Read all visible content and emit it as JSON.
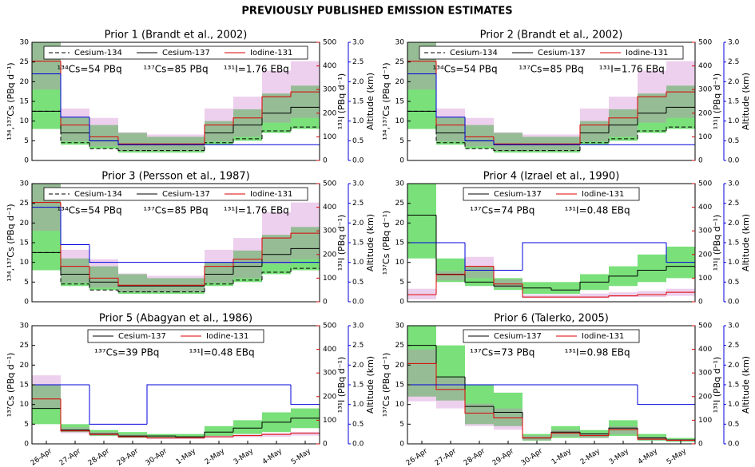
{
  "title": "PREVIOUSLY PUBLISHED EMISSION ESTIMATES",
  "chart_data": [
    {
      "type": "step",
      "title": "Prior 1 (Brandt et al., 2002)",
      "ylabel": "¹³⁴,¹³⁷Cs (PBq d⁻¹)",
      "y2label": "¹³¹I (PBq d⁻¹)",
      "y3label": "Altitude (km)",
      "ylim": [
        0,
        30
      ],
      "yticks": [
        0,
        5,
        10,
        15,
        20,
        25,
        30
      ],
      "y2lim": [
        0,
        500
      ],
      "y2ticks": [
        0,
        100,
        200,
        300,
        400,
        500
      ],
      "y3lim": [
        0,
        3
      ],
      "y3ticks": [
        {
          "value": 0,
          "label": "0.0"
        },
        {
          "value": 0.5,
          "label": "0.5"
        },
        {
          "value": 1,
          "label": "1.0"
        },
        {
          "value": 1.5,
          "label": "1.5"
        },
        {
          "value": 2,
          "label": "2.0"
        },
        {
          "value": 2.5,
          "label": "2.5"
        },
        {
          "value": 3,
          "label": "3.0"
        }
      ],
      "annotations": [
        "¹³⁴Cs=54 PBq",
        "¹³⁷Cs=85 PBq",
        "¹³¹I=1.76 EBq"
      ],
      "series": [
        {
          "name": "Cesium-134",
          "color": "#000000",
          "dash": true,
          "values": [
            12.5,
            4.5,
            3,
            2.5,
            2.5,
            2.5,
            4.5,
            5.5,
            7.5,
            8.5
          ]
        },
        {
          "name": "Cesium-137",
          "color": "#000000",
          "band_color": "#22cc22",
          "values": [
            12.5,
            7,
            5,
            4,
            4,
            4,
            7,
            9,
            12,
            13.5
          ],
          "lower": [
            8,
            4,
            3,
            2,
            2,
            2,
            4,
            5,
            7,
            8
          ],
          "upper": [
            30,
            11,
            9,
            7,
            6,
            6,
            10,
            13,
            17,
            19
          ]
        },
        {
          "name": "Iodine-131",
          "color": "#dd0000",
          "axis": "y2",
          "band_color": "#cc77cc",
          "values": [
            420,
            150,
            100,
            70,
            70,
            70,
            150,
            180,
            270,
            290
          ],
          "lower": [
            300,
            80,
            60,
            40,
            40,
            40,
            80,
            100,
            160,
            180
          ],
          "upper": [
            500,
            220,
            180,
            120,
            110,
            110,
            220,
            270,
            380,
            420
          ]
        }
      ],
      "altitude": {
        "color": "#0000dd",
        "values": [
          2.2,
          1.1,
          0.5,
          0.4,
          0.4,
          0.4,
          0.4,
          0.4,
          0.4,
          0.4
        ]
      }
    },
    {
      "type": "step",
      "title": "Prior 2 (Brandt et al., 2002)",
      "ylabel": "¹³⁴,¹³⁷Cs (PBq d⁻¹)",
      "y2label": "¹³¹I (PBq d⁻¹)",
      "y3label": "Altitude (km)",
      "ylim": [
        0,
        30
      ],
      "yticks": [
        0,
        5,
        10,
        15,
        20,
        25,
        30
      ],
      "y2lim": [
        0,
        500
      ],
      "y2ticks": [
        0,
        100,
        200,
        300,
        400,
        500
      ],
      "y3lim": [
        0,
        3
      ],
      "y3ticks": [
        {
          "value": 0,
          "label": "0.0"
        },
        {
          "value": 0.5,
          "label": "0.5"
        },
        {
          "value": 1,
          "label": "1.0"
        },
        {
          "value": 1.5,
          "label": "1.5"
        },
        {
          "value": 2,
          "label": "2.0"
        },
        {
          "value": 2.5,
          "label": "2.5"
        },
        {
          "value": 3,
          "label": "3.0"
        }
      ],
      "annotations": [
        "¹³⁴Cs=54 PBq",
        "¹³⁷Cs=85 PBq",
        "¹³¹I=1.76 EBq"
      ],
      "series": [
        {
          "name": "Cesium-134",
          "color": "#000000",
          "dash": true,
          "values": [
            12.5,
            4.5,
            3,
            2.5,
            2.5,
            2.5,
            4.5,
            5.5,
            7.5,
            8.5
          ]
        },
        {
          "name": "Cesium-137",
          "color": "#000000",
          "band_color": "#22cc22",
          "values": [
            12.5,
            7,
            5,
            4,
            4,
            4,
            7,
            9,
            12,
            13.5
          ],
          "lower": [
            8,
            4,
            3,
            2,
            2,
            2,
            4,
            5,
            7,
            8
          ],
          "upper": [
            30,
            11,
            9,
            7,
            6,
            6,
            10,
            13,
            17,
            19
          ]
        },
        {
          "name": "Iodine-131",
          "color": "#dd0000",
          "axis": "y2",
          "band_color": "#cc77cc",
          "values": [
            420,
            150,
            100,
            70,
            70,
            70,
            150,
            180,
            270,
            290
          ],
          "lower": [
            300,
            80,
            60,
            40,
            40,
            40,
            80,
            100,
            160,
            180
          ],
          "upper": [
            500,
            220,
            180,
            120,
            110,
            110,
            220,
            270,
            380,
            420
          ]
        }
      ],
      "altitude": {
        "color": "#0000dd",
        "values": [
          2.2,
          1.1,
          0.5,
          0.4,
          0.4,
          0.4,
          0.4,
          0.4,
          0.4,
          0.4
        ]
      }
    },
    {
      "type": "step",
      "title": "Prior 3 (Persson et al., 1987)",
      "ylabel": "¹³⁴,¹³⁷Cs (PBq d⁻¹)",
      "y2label": "¹³¹I (PBq d⁻¹)",
      "y3label": "Altitude (km)",
      "ylim": [
        0,
        30
      ],
      "yticks": [
        0,
        5,
        10,
        15,
        20,
        25,
        30
      ],
      "y2lim": [
        0,
        500
      ],
      "y2ticks": [
        0,
        100,
        200,
        300,
        400,
        500
      ],
      "y3lim": [
        0,
        3
      ],
      "y3ticks": [
        {
          "value": 0,
          "label": "0.0"
        },
        {
          "value": 0.5,
          "label": "0.5"
        },
        {
          "value": 1,
          "label": "1.0"
        },
        {
          "value": 1.5,
          "label": "1.5"
        },
        {
          "value": 2,
          "label": "2.0"
        },
        {
          "value": 2.5,
          "label": "2.5"
        },
        {
          "value": 3,
          "label": "3.0"
        }
      ],
      "annotations": [
        "¹³⁴Cs=54 PBq",
        "¹³⁷Cs=85 PBq",
        "¹³¹I=1.76 EBq"
      ],
      "series": [
        {
          "name": "Cesium-134",
          "color": "#000000",
          "dash": true,
          "values": [
            12.5,
            4.5,
            3,
            2.5,
            2.5,
            2.5,
            4.5,
            5.5,
            7.5,
            8.5
          ]
        },
        {
          "name": "Cesium-137",
          "color": "#000000",
          "band_color": "#22cc22",
          "values": [
            12.5,
            7,
            5,
            4,
            4,
            4,
            7,
            9,
            12,
            13.5
          ],
          "lower": [
            8,
            4,
            3,
            2,
            2,
            2,
            4,
            5,
            7,
            8
          ],
          "upper": [
            30,
            11,
            9,
            7,
            6,
            6,
            10,
            13,
            17,
            19
          ]
        },
        {
          "name": "Iodine-131",
          "color": "#dd0000",
          "axis": "y2",
          "band_color": "#cc77cc",
          "values": [
            420,
            150,
            100,
            70,
            70,
            70,
            150,
            180,
            270,
            290
          ],
          "lower": [
            300,
            80,
            60,
            40,
            40,
            40,
            80,
            100,
            160,
            180
          ],
          "upper": [
            500,
            220,
            180,
            120,
            110,
            110,
            220,
            270,
            380,
            420
          ]
        }
      ],
      "altitude": {
        "color": "#0000dd",
        "values": [
          2.4,
          1.45,
          1,
          1,
          1,
          1,
          1,
          1,
          1,
          1
        ]
      }
    },
    {
      "type": "step",
      "title": "Prior 4 (Izrael et al., 1990)",
      "ylabel": "¹³⁷Cs (PBq d⁻¹)",
      "y2label": "¹³¹I (PBq d⁻¹)",
      "y3label": "Altitude (km)",
      "ylim": [
        0,
        30
      ],
      "yticks": [
        0,
        5,
        10,
        15,
        20,
        25,
        30
      ],
      "y2lim": [
        0,
        500
      ],
      "y2ticks": [
        0,
        100,
        200,
        300,
        400,
        500
      ],
      "y3lim": [
        0,
        3
      ],
      "y3ticks": [
        {
          "value": 0,
          "label": "0.0"
        },
        {
          "value": 0.5,
          "label": "0.5"
        },
        {
          "value": 1,
          "label": "1.0"
        },
        {
          "value": 1.5,
          "label": "1.5"
        },
        {
          "value": 2,
          "label": "2.0"
        },
        {
          "value": 2.5,
          "label": "2.5"
        },
        {
          "value": 3,
          "label": "3.0"
        }
      ],
      "annotations": [
        "¹³⁷Cs=74 PBq",
        "¹³¹I=0.48 EBq"
      ],
      "series": [
        {
          "name": "Cesium-137",
          "color": "#000000",
          "band_color": "#22cc22",
          "values": [
            22,
            7,
            5,
            4,
            3.5,
            3,
            5,
            6.5,
            8,
            9
          ],
          "lower": [
            11,
            5,
            4,
            3,
            2,
            2,
            3,
            4,
            5,
            6
          ],
          "upper": [
            30,
            11,
            9,
            6,
            5,
            5,
            7,
            9,
            12,
            14
          ]
        },
        {
          "name": "Iodine-131",
          "color": "#dd0000",
          "axis": "y2",
          "band_color": "#cc77cc",
          "values": [
            30,
            115,
            150,
            75,
            20,
            20,
            20,
            25,
            30,
            40
          ],
          "lower": [
            10,
            90,
            100,
            60,
            15,
            15,
            15,
            20,
            20,
            25
          ],
          "upper": [
            55,
            130,
            190,
            95,
            30,
            30,
            35,
            40,
            45,
            55
          ]
        }
      ],
      "altitude": {
        "color": "#0000dd",
        "values": [
          1.5,
          1.5,
          0.8,
          0.8,
          1.5,
          1.5,
          1.5,
          1.5,
          1.5,
          1
        ]
      }
    },
    {
      "type": "step",
      "title": "Prior 5 (Abagyan et al., 1986)",
      "ylabel": "¹³⁷Cs (PBq d⁻¹)",
      "y2label": "¹³¹I (PBq d⁻¹)",
      "y3label": "Altitude (km)",
      "categories": [
        "26-Apr",
        "27-Apr",
        "28-Apr",
        "29-Apr",
        "30-Apr",
        "1-May",
        "2-May",
        "3-May",
        "4-May",
        "5-May"
      ],
      "ylim": [
        0,
        30
      ],
      "yticks": [
        0,
        5,
        10,
        15,
        20,
        25,
        30
      ],
      "y2lim": [
        0,
        500
      ],
      "y2ticks": [
        0,
        100,
        200,
        300,
        400,
        500
      ],
      "y3lim": [
        0,
        3
      ],
      "y3ticks": [
        {
          "value": 0,
          "label": "0.0"
        },
        {
          "value": 0.5,
          "label": "0.5"
        },
        {
          "value": 1,
          "label": "1.0"
        },
        {
          "value": 1.5,
          "label": "1.5"
        },
        {
          "value": 2,
          "label": "2.0"
        },
        {
          "value": 2.5,
          "label": "2.5"
        },
        {
          "value": 3,
          "label": "3.0"
        }
      ],
      "annotations": [
        "¹³⁷Cs=39 PBq",
        "¹³¹I=0.48 EBq"
      ],
      "series": [
        {
          "name": "Cesium-137",
          "color": "#000000",
          "band_color": "#22cc22",
          "values": [
            9,
            3.5,
            2.5,
            2,
            2,
            1.8,
            3,
            4,
            5.5,
            6.5
          ],
          "lower": [
            5,
            3,
            2,
            1.5,
            1.5,
            1.5,
            2,
            2.5,
            3,
            4
          ],
          "upper": [
            15,
            5,
            3.5,
            3,
            2.5,
            2.5,
            4.5,
            6,
            8,
            9
          ]
        },
        {
          "name": "Iodine-131",
          "color": "#dd0000",
          "axis": "y2",
          "band_color": "#cc77cc",
          "values": [
            190,
            55,
            40,
            30,
            25,
            25,
            30,
            35,
            40,
            45
          ],
          "lower": [
            150,
            45,
            35,
            25,
            20,
            20,
            25,
            28,
            30,
            35
          ],
          "upper": [
            290,
            70,
            50,
            40,
            30,
            30,
            35,
            40,
            45,
            50
          ]
        }
      ],
      "altitude": {
        "color": "#0000dd",
        "values": [
          1.5,
          1.5,
          0.5,
          0.5,
          1.5,
          1.5,
          1.5,
          1.5,
          1.5,
          1
        ]
      }
    },
    {
      "type": "step",
      "title": "Prior 6 (Talerko, 2005)",
      "ylabel": "¹³⁷Cs (PBq d⁻¹)",
      "y2label": "¹³¹I (PBq d⁻¹)",
      "y3label": "Altitude (km)",
      "categories": [
        "26-Apr",
        "27-Apr",
        "28-Apr",
        "29-Apr",
        "30-Apr",
        "1-May",
        "2-May",
        "3-May",
        "4-May",
        "5-May"
      ],
      "ylim": [
        0,
        30
      ],
      "yticks": [
        0,
        5,
        10,
        15,
        20,
        25,
        30
      ],
      "y2lim": [
        0,
        500
      ],
      "y2ticks": [
        0,
        100,
        200,
        300,
        400,
        500
      ],
      "y3lim": [
        0,
        3
      ],
      "y3ticks": [
        {
          "value": 0,
          "label": "0.0"
        },
        {
          "value": 0.5,
          "label": "0.5"
        },
        {
          "value": 1,
          "label": "1.0"
        },
        {
          "value": 1.5,
          "label": "1.5"
        },
        {
          "value": 2,
          "label": "2.0"
        },
        {
          "value": 2.5,
          "label": "2.5"
        },
        {
          "value": 3,
          "label": "3.0"
        }
      ],
      "annotations": [
        "¹³⁷Cs=73 PBq",
        "¹³¹I=0.98 EBq"
      ],
      "series": [
        {
          "name": "Cesium-137",
          "color": "#000000",
          "band_color": "#22cc22",
          "values": [
            25,
            17,
            9.5,
            8,
            1.5,
            3,
            2.5,
            4,
            1.5,
            1
          ],
          "lower": [
            12,
            11,
            5,
            4.5,
            0.8,
            1.5,
            1.5,
            2,
            0.8,
            0.5
          ],
          "upper": [
            30,
            25,
            15,
            13,
            2.5,
            4.5,
            3.5,
            6,
            2.5,
            1.5
          ]
        },
        {
          "name": "Iodine-131",
          "color": "#dd0000",
          "axis": "y2",
          "band_color": "#cc77cc",
          "values": [
            340,
            230,
            130,
            110,
            25,
            45,
            35,
            60,
            20,
            15
          ],
          "lower": [
            180,
            150,
            75,
            60,
            15,
            30,
            25,
            40,
            15,
            10
          ],
          "upper": [
            400,
            280,
            170,
            150,
            35,
            60,
            45,
            75,
            30,
            20
          ]
        }
      ],
      "altitude": {
        "color": "#0000dd",
        "values": [
          1.5,
          1.5,
          1.5,
          1.5,
          1.5,
          1.5,
          1.5,
          1.5,
          1,
          1
        ]
      }
    }
  ]
}
